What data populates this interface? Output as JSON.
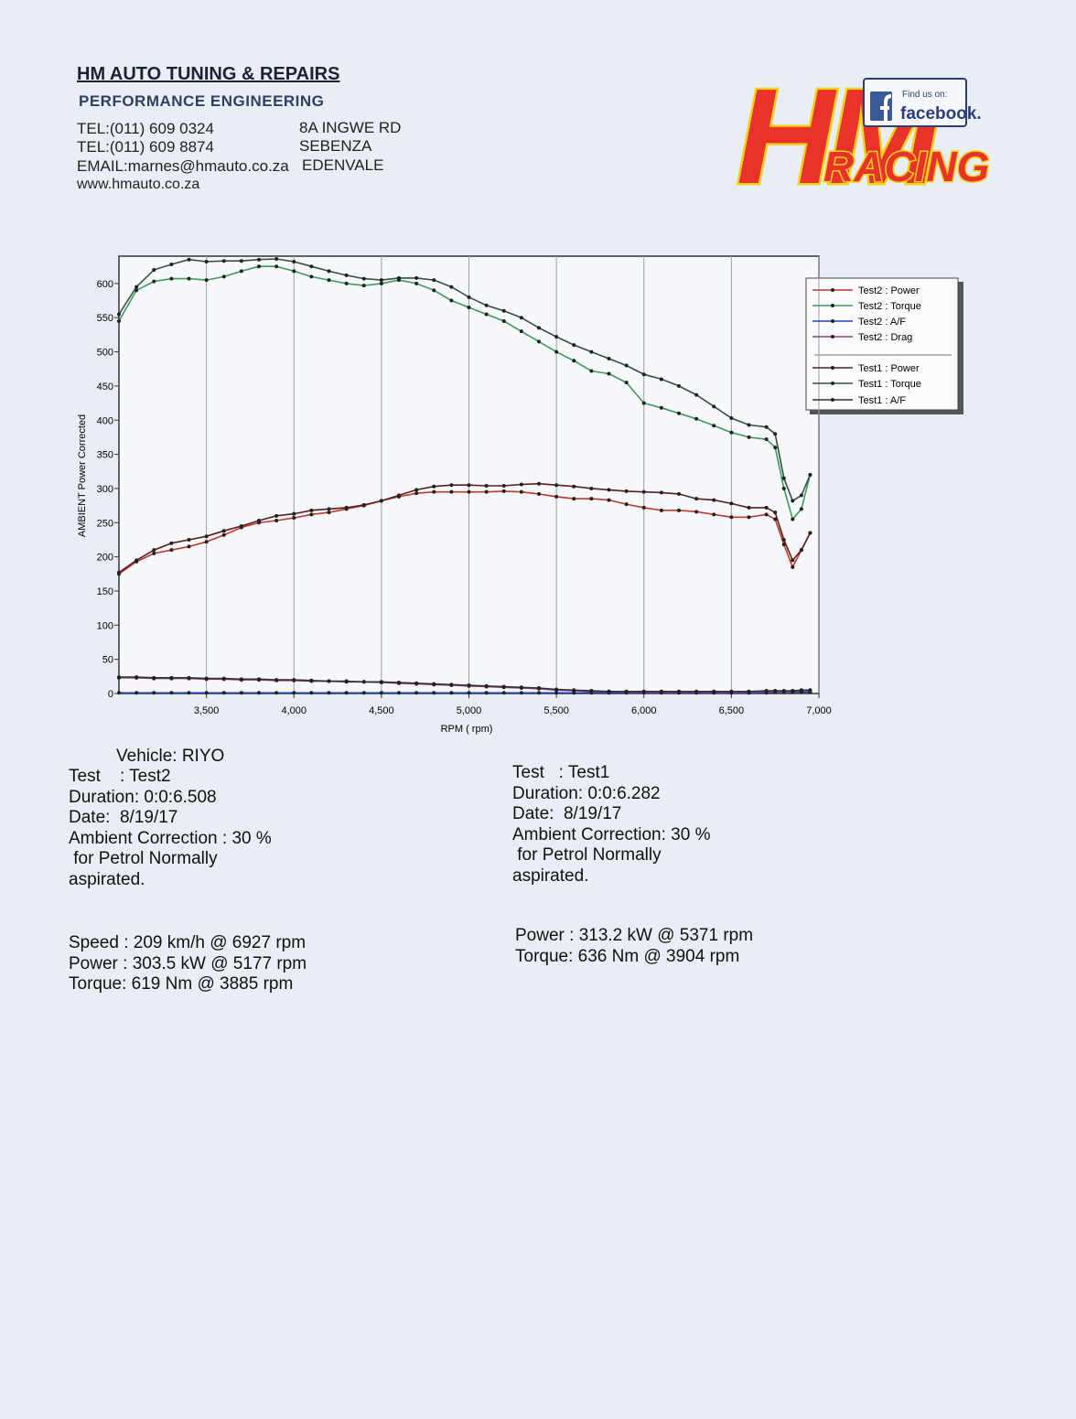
{
  "header": {
    "company": "HM AUTO TUNING & REPAIRS",
    "subtitle": "PERFORMANCE ENGINEERING",
    "phones": [
      "TEL:(011) 609 0324",
      "TEL:(011) 609 8874"
    ],
    "email": "EMAIL:marnes@hmauto.co.za",
    "website": "www.hmauto.co.za",
    "address": [
      "8A INGWE RD",
      "SEBENZA",
      "EDENVALE"
    ]
  },
  "logo": {
    "brand": "HM",
    "tagline": "RACING",
    "social_prompt": "Find us on:",
    "social": "facebook."
  },
  "chart_data": {
    "type": "line",
    "xlabel": "RPM ( rpm)",
    "ylabel": "AMBIENT Power Corrected",
    "xlim": [
      3000,
      7000
    ],
    "ylim": [
      0,
      640
    ],
    "xticks": [
      {
        "value": 3500,
        "label": "3,500"
      },
      {
        "value": 4000,
        "label": "4,000"
      },
      {
        "value": 4500,
        "label": "4,500"
      },
      {
        "value": 5000,
        "label": "5,000"
      },
      {
        "value": 5500,
        "label": "5,500"
      },
      {
        "value": 6000,
        "label": "6,000"
      },
      {
        "value": 6500,
        "label": "6,500"
      },
      {
        "value": 7000,
        "label": "7,000"
      }
    ],
    "yticks": [
      0,
      50,
      100,
      150,
      200,
      250,
      300,
      350,
      400,
      450,
      500,
      550,
      600
    ],
    "grid": true,
    "legend": "right",
    "x": [
      3000,
      3100,
      3200,
      3300,
      3400,
      3500,
      3600,
      3700,
      3800,
      3900,
      4000,
      4100,
      4200,
      4300,
      4400,
      4500,
      4600,
      4700,
      4800,
      4900,
      5000,
      5100,
      5200,
      5300,
      5400,
      5500,
      5600,
      5700,
      5800,
      5900,
      6000,
      6100,
      6200,
      6300,
      6400,
      6500,
      6600,
      6700,
      6750,
      6800,
      6850,
      6900,
      6950
    ],
    "series": [
      {
        "name": "Test2 : Power",
        "color": "#c0392b",
        "values": [
          175,
          193,
          205,
          210,
          215,
          222,
          232,
          243,
          250,
          253,
          257,
          262,
          265,
          270,
          275,
          282,
          288,
          293,
          295,
          295,
          295,
          295,
          296,
          295,
          292,
          288,
          285,
          285,
          283,
          277,
          272,
          268,
          268,
          266,
          262,
          258,
          258,
          262,
          255,
          218,
          185,
          210,
          235
        ]
      },
      {
        "name": "Test2 : Torque",
        "color": "#3e9a5c",
        "values": [
          545,
          590,
          603,
          607,
          607,
          605,
          610,
          618,
          625,
          625,
          618,
          610,
          605,
          600,
          597,
          600,
          605,
          600,
          590,
          575,
          565,
          555,
          545,
          530,
          515,
          500,
          487,
          472,
          468,
          455,
          425,
          418,
          410,
          402,
          392,
          382,
          375,
          372,
          360,
          300,
          255,
          270,
          320
        ]
      },
      {
        "name": "Test2 : A/F",
        "color": "#1f3fbf",
        "values": [
          1,
          1,
          1,
          1,
          1,
          1,
          1,
          1,
          1,
          1,
          1,
          1,
          1,
          1,
          1,
          1,
          1,
          1,
          1,
          1,
          1,
          1,
          1,
          1,
          1,
          1,
          1,
          1,
          1,
          1,
          1,
          1,
          1,
          1,
          1,
          1,
          1,
          1,
          2,
          2,
          2,
          2,
          2
        ]
      },
      {
        "name": "Test2 : Drag",
        "color": "#8e3b8e",
        "values": [
          23,
          23,
          22,
          22,
          22,
          21,
          21,
          20,
          20,
          19,
          19,
          18,
          18,
          17,
          17,
          16,
          15,
          14,
          13,
          12,
          11,
          10,
          9,
          8,
          7,
          5,
          4,
          3,
          3,
          2,
          2,
          2,
          2,
          2,
          2,
          2,
          2,
          3,
          3,
          3,
          3,
          4,
          4
        ]
      },
      {
        "name": "Test1 : Power",
        "color": "#5a1e1e",
        "values": [
          177,
          195,
          210,
          220,
          225,
          230,
          238,
          245,
          253,
          260,
          263,
          268,
          270,
          272,
          276,
          282,
          290,
          298,
          303,
          305,
          305,
          304,
          304,
          306,
          307,
          305,
          303,
          300,
          298,
          296,
          295,
          294,
          292,
          285,
          283,
          278,
          272,
          272,
          265,
          225,
          195,
          210,
          235
        ]
      },
      {
        "name": "Test1 : Torque",
        "color": "#34503f",
        "values": [
          555,
          595,
          620,
          628,
          635,
          632,
          633,
          633,
          635,
          636,
          632,
          625,
          618,
          612,
          607,
          605,
          608,
          608,
          605,
          595,
          580,
          568,
          560,
          550,
          535,
          522,
          510,
          500,
          490,
          480,
          467,
          460,
          450,
          437,
          420,
          403,
          393,
          390,
          380,
          315,
          282,
          290,
          320
        ]
      },
      {
        "name": "Test1 : A/F",
        "color": "#333333",
        "values": [
          24,
          24,
          23,
          23,
          23,
          22,
          22,
          21,
          21,
          20,
          20,
          19,
          18,
          18,
          17,
          17,
          16,
          15,
          14,
          13,
          12,
          11,
          10,
          9,
          8,
          6,
          5,
          4,
          3,
          3,
          3,
          3,
          3,
          3,
          3,
          3,
          3,
          4,
          4,
          4,
          4,
          5,
          5
        ]
      }
    ]
  },
  "vehicle": "Vehicle: RIYO",
  "tests": [
    {
      "details": [
        "Test    : Test2",
        "Duration: 0:0:6.508",
        "Date:  8/19/17",
        "Ambient Correction : 30 %",
        " for Petrol Normally",
        "aspirated."
      ],
      "results": [
        "Speed : 209 km/h @ 6927 rpm",
        "Power : 303.5 kW @ 5177 rpm",
        "Torque: 619 Nm @ 3885 rpm"
      ]
    },
    {
      "details": [
        "Test   : Test1",
        "Duration: 0:0:6.282",
        "Date:  8/19/17",
        "Ambient Correction: 30 %",
        " for Petrol Normally",
        "aspirated."
      ],
      "results": [
        "Power : 313.2 kW @ 5371 rpm",
        "Torque: 636 Nm @ 3904 rpm"
      ]
    }
  ]
}
